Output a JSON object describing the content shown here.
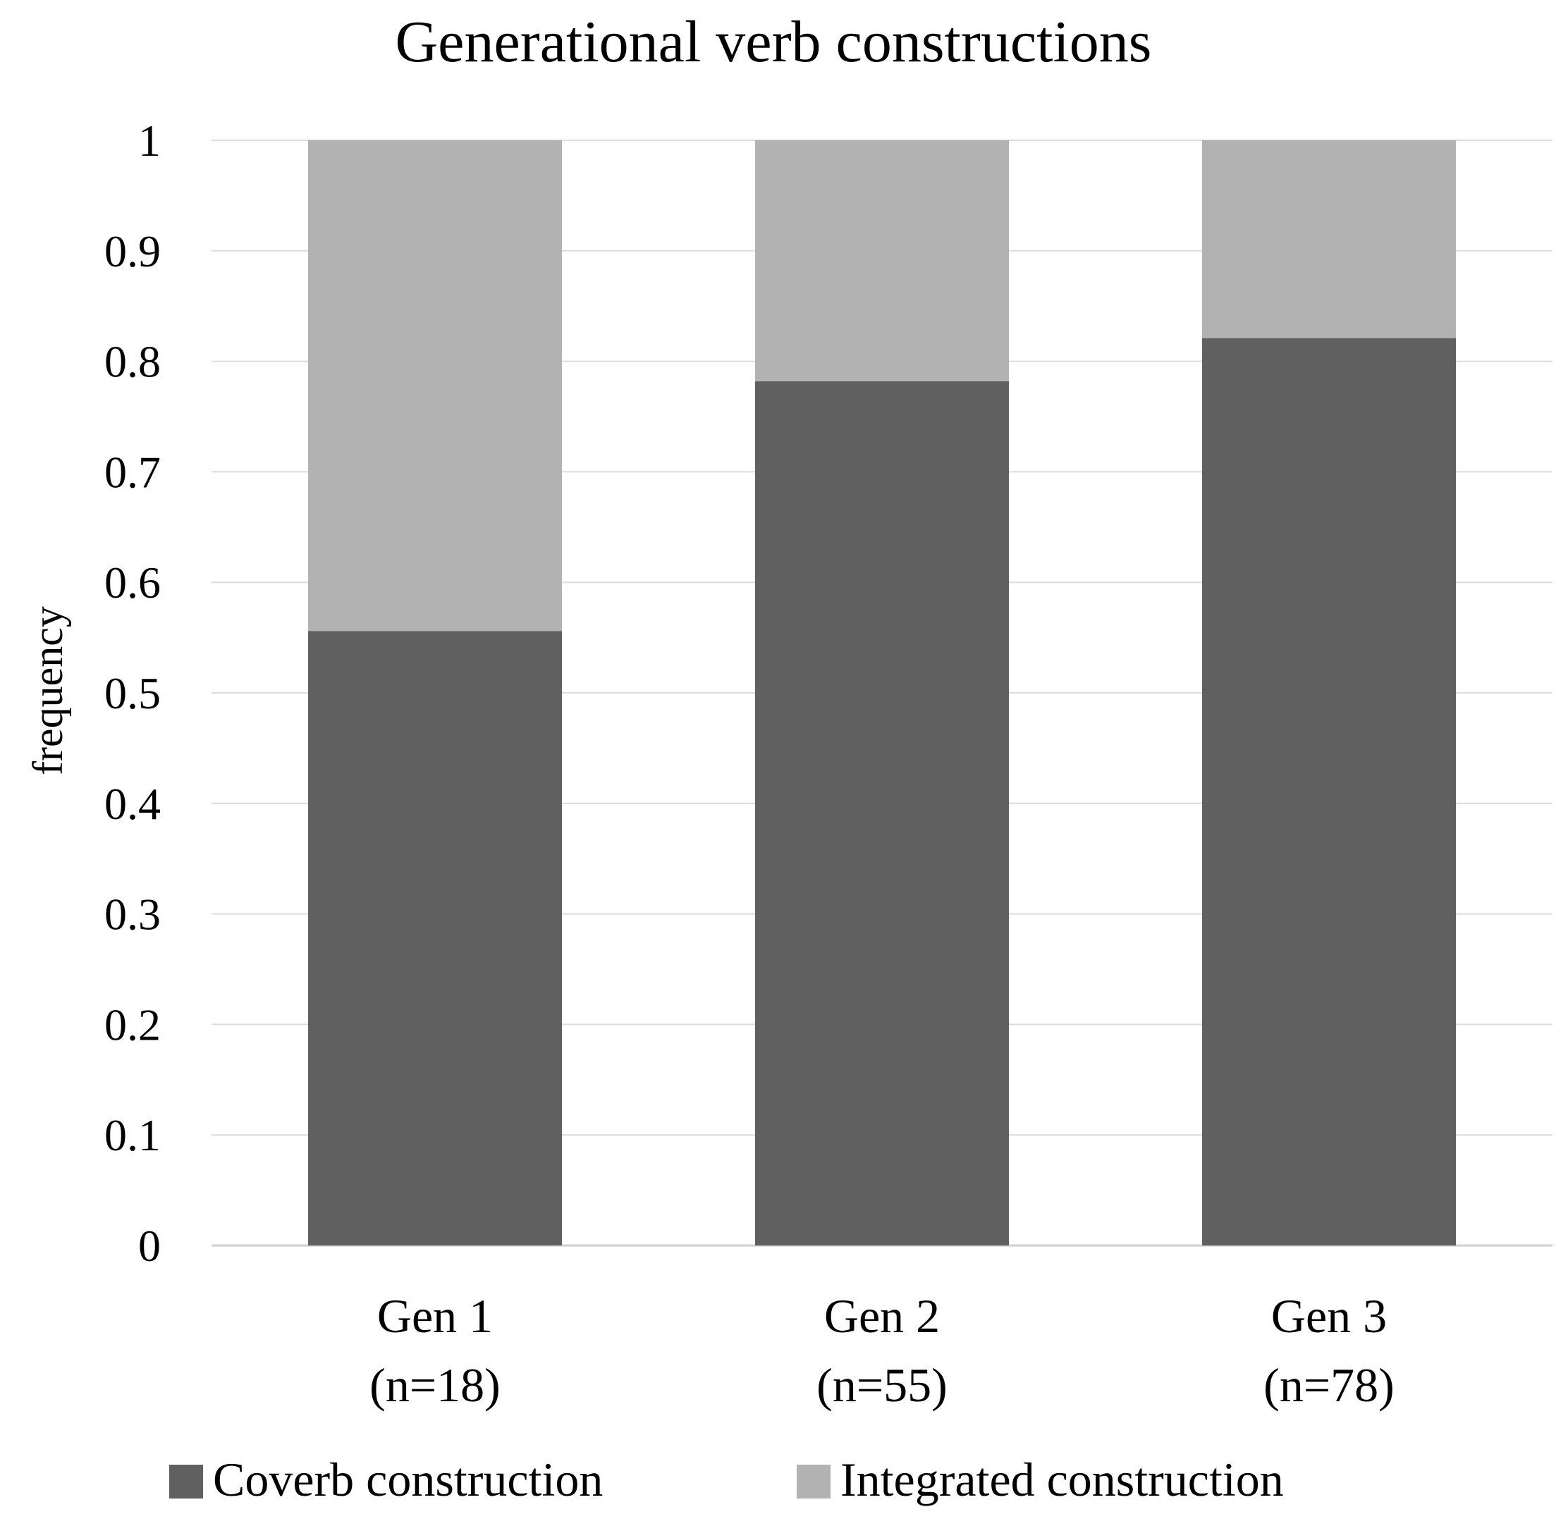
{
  "chart_data": {
    "type": "bar",
    "stacked": true,
    "title": "Generational verb constructions",
    "xlabel": "",
    "ylabel": "frequency",
    "ylim": [
      0,
      1
    ],
    "yticks": [
      "0",
      "0.1",
      "0.2",
      "0.3",
      "0.4",
      "0.5",
      "0.6",
      "0.7",
      "0.8",
      "0.9",
      "1"
    ],
    "grid": true,
    "legend_position": "bottom",
    "categories": [
      {
        "line1": "Gen 1",
        "line2": "(n=18)"
      },
      {
        "line1": "Gen 2",
        "line2": "(n=55)"
      },
      {
        "line1": "Gen 3",
        "line2": "(n=78)"
      }
    ],
    "series": [
      {
        "name": "Coverb construction",
        "color": "#606060",
        "values": [
          0.556,
          0.782,
          0.821
        ]
      },
      {
        "name": "Integrated construction",
        "color": "#b2b2b2",
        "values": [
          0.444,
          0.218,
          0.179
        ]
      }
    ]
  }
}
